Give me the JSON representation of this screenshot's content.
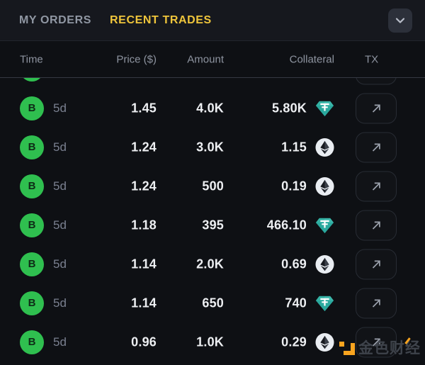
{
  "panel": {
    "tabs": [
      {
        "label": "MY ORDERS",
        "active": false
      },
      {
        "label": "RECENT TRADES",
        "active": true
      }
    ],
    "collapse_icon": "chevron-down"
  },
  "table": {
    "columns": [
      "Time",
      "Price ($)",
      "Amount",
      "Collateral",
      "TX"
    ],
    "rows": [
      {
        "side": "B",
        "time": "5d",
        "price": "1.45",
        "amount": "4.0K",
        "collateral": "5.80K",
        "collateral_asset": "usdt"
      },
      {
        "side": "B",
        "time": "5d",
        "price": "1.24",
        "amount": "3.0K",
        "collateral": "1.15",
        "collateral_asset": "eth"
      },
      {
        "side": "B",
        "time": "5d",
        "price": "1.24",
        "amount": "500",
        "collateral": "0.19",
        "collateral_asset": "eth"
      },
      {
        "side": "B",
        "time": "5d",
        "price": "1.18",
        "amount": "395",
        "collateral": "466.10",
        "collateral_asset": "usdt"
      },
      {
        "side": "B",
        "time": "5d",
        "price": "1.14",
        "amount": "2.0K",
        "collateral": "0.69",
        "collateral_asset": "eth"
      },
      {
        "side": "B",
        "time": "5d",
        "price": "1.14",
        "amount": "650",
        "collateral": "740",
        "collateral_asset": "usdt"
      },
      {
        "side": "B",
        "time": "5d",
        "price": "0.96",
        "amount": "1.0K",
        "collateral": "0.29",
        "collateral_asset": "eth"
      }
    ]
  },
  "watermark": {
    "text": "金色财经"
  },
  "colors": {
    "accent_yellow": "#efc53b",
    "buy_green": "#2fbf4f",
    "usdt_teal": "#2aa99e",
    "background": "#0e1014",
    "tabbar_background": "#16181e",
    "text_primary": "#edeff2",
    "text_muted": "#8e94a0"
  }
}
